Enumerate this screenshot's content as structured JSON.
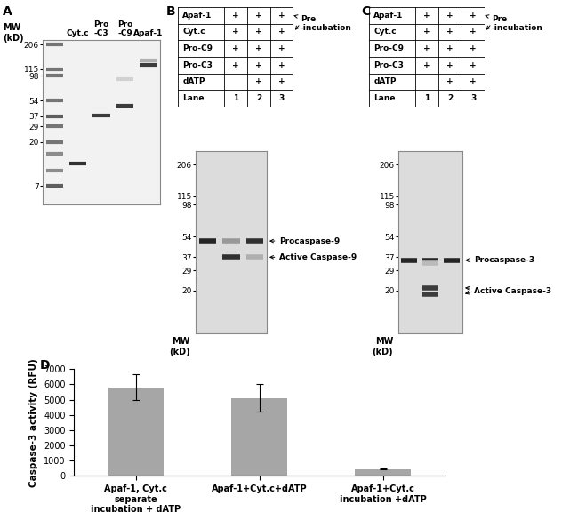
{
  "panel_labels": [
    "A",
    "B",
    "C",
    "D"
  ],
  "gels": [
    {
      "axis_label": "MW\n(kD)",
      "lanes": [
        null,
        "Cyt.c",
        "Pro\n-C3",
        "Pro\n-C9",
        "Apaf-1"
      ],
      "log": "y",
      "ylim": [
        4.5,
        230
      ],
      "yticks": [
        206,
        115,
        98,
        54,
        37,
        29,
        20,
        7
      ],
      "bands": [
        {
          "lane": 0,
          "mw": 206,
          "intensity": 0.6
        },
        {
          "lane": 0,
          "mw": 115,
          "intensity": 0.6
        },
        {
          "lane": 0,
          "mw": 98,
          "intensity": 0.6
        },
        {
          "lane": 0,
          "mw": 54,
          "intensity": 0.6
        },
        {
          "lane": 0,
          "mw": 37,
          "intensity": 0.7
        },
        {
          "lane": 0,
          "mw": 29,
          "intensity": 0.6
        },
        {
          "lane": 0,
          "mw": 20,
          "intensity": 0.6
        },
        {
          "lane": 0,
          "mw": 15,
          "intensity": 0.5
        },
        {
          "lane": 0,
          "mw": 10,
          "intensity": 0.5
        },
        {
          "lane": 0,
          "mw": 7,
          "intensity": 0.7
        },
        {
          "lane": 1,
          "mw": 12,
          "intensity": 0.9
        },
        {
          "lane": 2,
          "mw": 38,
          "intensity": 0.85
        },
        {
          "lane": 3,
          "mw": 48,
          "intensity": 0.85
        },
        {
          "lane": 3,
          "mw": 90,
          "intensity": 0.2
        },
        {
          "lane": 4,
          "mw": 128,
          "intensity": 0.85
        },
        {
          "lane": 4,
          "mw": 140,
          "intensity": 0.35
        }
      ]
    },
    {
      "axis_label": "MW\n(kD)",
      "table": {
        "rows": [
          {
            "label": "Apaf-1",
            "cells": [
              "+",
              "+",
              "+"
            ]
          },
          {
            "label": "Cyt.c",
            "cells": [
              "+",
              "+",
              "+"
            ]
          },
          {
            "label": "Pro-C9",
            "cells": [
              "+",
              "+",
              "+"
            ]
          },
          {
            "label": "Pro-C3",
            "cells": [
              "+",
              "+",
              "+"
            ]
          },
          {
            "label": "dATP",
            "cells": [
              null,
              "+",
              "+"
            ]
          },
          {
            "label": "Lane",
            "cells": [
              1,
              2,
              3
            ]
          }
        ]
      },
      "pre_incubation": {
        "label": "Pre\n-incubation",
        "rows": [
          0,
          1
        ]
      },
      "log": "y",
      "ylim": [
        9,
        265
      ],
      "yticks": [
        206,
        115,
        98,
        54,
        37,
        29,
        20
      ],
      "bands": [
        {
          "lane": 0,
          "mw": 50,
          "intensity": 0.95
        },
        {
          "lane": 1,
          "mw": 50,
          "intensity": 0.45
        },
        {
          "lane": 1,
          "mw": 37,
          "intensity": 0.9
        },
        {
          "lane": 2,
          "mw": 50,
          "intensity": 0.9
        },
        {
          "lane": 2,
          "mw": 37,
          "intensity": 0.35
        }
      ],
      "markers": [
        {
          "label": "Procaspase-9",
          "mw": [
            50
          ]
        },
        {
          "label": "Active Caspase-9",
          "mw": [
            37
          ]
        }
      ]
    },
    {
      "axis_label": "MW\n(kD)",
      "table": {
        "rows": [
          {
            "label": "Apaf-1",
            "cells": [
              "+",
              "+",
              "+"
            ]
          },
          {
            "label": "Cyt.c",
            "cells": [
              "+",
              "+",
              "+"
            ]
          },
          {
            "label": "Pro-C9",
            "cells": [
              "+",
              "+",
              "+"
            ]
          },
          {
            "label": "Pro-C3",
            "cells": [
              "+",
              "+",
              "+"
            ]
          },
          {
            "label": "dATP",
            "cells": [
              null,
              "+",
              "+"
            ]
          },
          {
            "label": "Lane",
            "cells": [
              1,
              2,
              3
            ]
          }
        ]
      },
      "pre_incubation": {
        "label": "Pre\n-incubation",
        "rows": [
          0,
          1
        ]
      },
      "log": "y",
      "ylim": [
        9,
        265
      ],
      "yticks": [
        206,
        115,
        98,
        54,
        37,
        29,
        20
      ],
      "bands": [
        {
          "lane": 0,
          "mw": 35,
          "intensity": 0.95
        },
        {
          "lane": 1,
          "mw": 35,
          "intensity": 0.95
        },
        {
          "lane": 1,
          "mw": 33,
          "intensity": 0.3
        },
        {
          "lane": 1,
          "mw": 21,
          "intensity": 0.85
        },
        {
          "lane": 1,
          "mw": 18.5,
          "intensity": 0.85
        },
        {
          "lane": 2,
          "mw": 35,
          "intensity": 0.95
        }
      ],
      "markers": [
        {
          "label": "Procaspase-3",
          "mw": [
            35
          ]
        },
        {
          "label": "Active Caspase-3",
          "mw": [
            21,
            18.5
          ]
        }
      ]
    }
  ],
  "chart_data": {
    "type": "bar",
    "categories": [
      "Apaf-1, Cyt.c separate incubation + dATP",
      "Apaf-1+Cyt.c+dATP",
      "Apaf-1+Cyt.c incubation +dATP"
    ],
    "values": [
      5800,
      5100,
      450
    ],
    "errors": [
      850,
      900,
      40
    ],
    "color": "#a6a6a6",
    "ylabel": "Caspase-3 activity (RFU)",
    "ylim": [
      0,
      7000
    ],
    "yticks": [
      0,
      1000,
      2000,
      3000,
      4000,
      5000,
      6000,
      7000
    ]
  }
}
